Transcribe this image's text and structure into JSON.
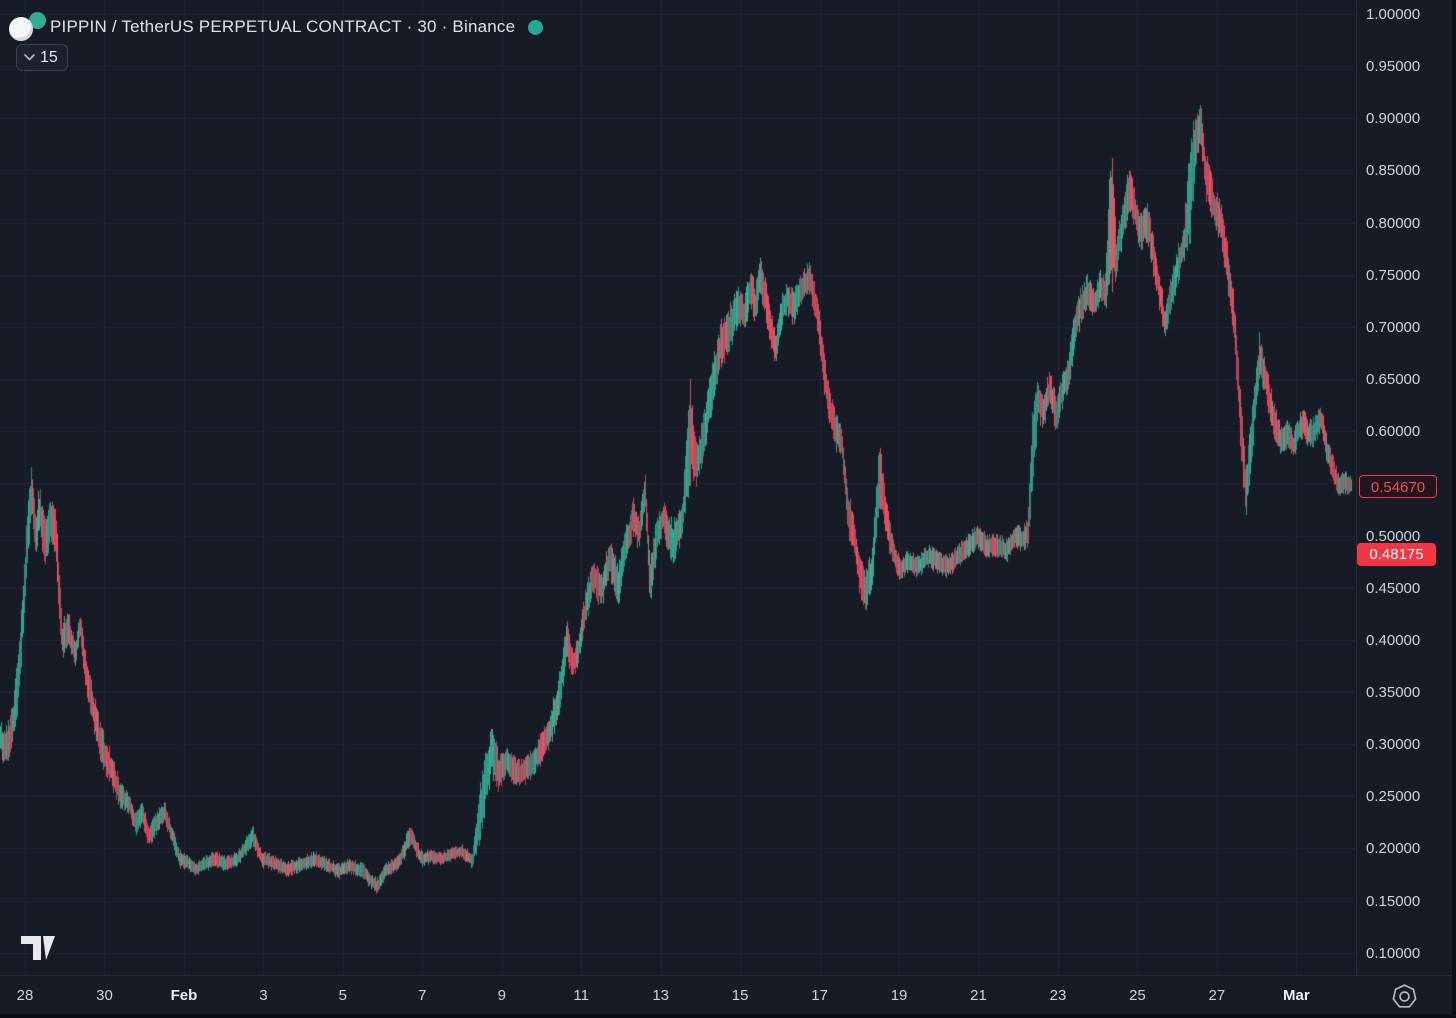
{
  "app": {
    "background": "#161b26",
    "grid_color": "#1f2533",
    "axis_text_color": "#ced2da"
  },
  "header": {
    "symbol_title": "PIPPIN / TetherUS PERPETUAL CONTRACT · 30 · Binance",
    "status_dot_color": "#22ab94",
    "coin_logo_back_color": "#2fae94",
    "interval_chip": {
      "label": "15",
      "icon": "chevron-down"
    }
  },
  "footer": {
    "logo": "tradingview-logo",
    "settings_icon": "gear-heptagon"
  },
  "chart_data": {
    "type": "candlestick",
    "title": "PIPPIN / TetherUS PERPETUAL CONTRACT · 30 · Binance",
    "exchange": "Binance",
    "interval_minutes": 30,
    "up_color": "#39b29a",
    "down_color": "#ee5467",
    "last_price": "0.54670",
    "marked_price": "0.48175",
    "y_axis": {
      "tick_labels": [
        "1.00000",
        "0.95000",
        "0.90000",
        "0.85000",
        "0.80000",
        "0.75000",
        "0.70000",
        "0.65000",
        "0.60000",
        "0.50000",
        "0.45000",
        "0.40000",
        "0.35000",
        "0.30000",
        "0.25000",
        "0.20000",
        "0.15000",
        "0.10000"
      ],
      "gridline_prices": [
        1.0,
        0.95,
        0.9,
        0.85,
        0.8,
        0.75,
        0.7,
        0.65,
        0.6,
        0.55,
        0.5,
        0.45,
        0.4,
        0.35,
        0.3,
        0.25,
        0.2,
        0.15,
        0.1
      ],
      "visible_range": [
        0.06,
        1.01
      ]
    },
    "x_axis": {
      "unit": "days_since_jan_28",
      "ticks": [
        {
          "label": "28",
          "d": 0
        },
        {
          "label": "30",
          "d": 2
        },
        {
          "label": "Feb",
          "d": 4,
          "bold": true
        },
        {
          "label": "3",
          "d": 6
        },
        {
          "label": "5",
          "d": 8
        },
        {
          "label": "7",
          "d": 10
        },
        {
          "label": "9",
          "d": 12
        },
        {
          "label": "11",
          "d": 14
        },
        {
          "label": "13",
          "d": 16
        },
        {
          "label": "15",
          "d": 18
        },
        {
          "label": "17",
          "d": 20
        },
        {
          "label": "19",
          "d": 22
        },
        {
          "label": "21",
          "d": 24
        },
        {
          "label": "23",
          "d": 26
        },
        {
          "label": "25",
          "d": 28
        },
        {
          "label": "27",
          "d": 30
        },
        {
          "label": "Mar",
          "d": 32,
          "bold": true
        }
      ]
    },
    "series_columns": [
      "day_offset",
      "price",
      "half_range"
    ],
    "series": [
      [
        -0.65,
        0.305,
        0.018
      ],
      [
        -0.48,
        0.298,
        0.02
      ],
      [
        -0.33,
        0.315,
        0.022
      ],
      [
        -0.18,
        0.36,
        0.03
      ],
      [
        -0.04,
        0.44,
        0.035
      ],
      [
        0.08,
        0.51,
        0.03
      ],
      [
        0.16,
        0.545,
        0.025
      ],
      [
        0.26,
        0.5,
        0.03
      ],
      [
        0.36,
        0.525,
        0.025
      ],
      [
        0.5,
        0.49,
        0.03
      ],
      [
        0.64,
        0.515,
        0.022
      ],
      [
        0.78,
        0.495,
        0.03
      ],
      [
        0.92,
        0.4,
        0.022
      ],
      [
        1.1,
        0.41,
        0.016
      ],
      [
        1.25,
        0.386,
        0.015
      ],
      [
        1.38,
        0.413,
        0.015
      ],
      [
        1.52,
        0.372,
        0.02
      ],
      [
        1.7,
        0.335,
        0.02
      ],
      [
        1.9,
        0.3,
        0.02
      ],
      [
        2.16,
        0.276,
        0.018
      ],
      [
        2.4,
        0.25,
        0.014
      ],
      [
        2.6,
        0.244,
        0.012
      ],
      [
        2.78,
        0.222,
        0.012
      ],
      [
        2.95,
        0.235,
        0.012
      ],
      [
        3.1,
        0.21,
        0.011
      ],
      [
        3.3,
        0.225,
        0.012
      ],
      [
        3.5,
        0.235,
        0.012
      ],
      [
        3.7,
        0.212,
        0.01
      ],
      [
        3.88,
        0.19,
        0.01
      ],
      [
        4.1,
        0.186,
        0.008
      ],
      [
        4.3,
        0.18,
        0.008
      ],
      [
        4.55,
        0.186,
        0.008
      ],
      [
        4.8,
        0.19,
        0.009
      ],
      [
        5.05,
        0.185,
        0.008
      ],
      [
        5.35,
        0.19,
        0.008
      ],
      [
        5.72,
        0.213,
        0.012
      ],
      [
        5.95,
        0.19,
        0.009
      ],
      [
        6.25,
        0.186,
        0.008
      ],
      [
        6.6,
        0.18,
        0.008
      ],
      [
        7.0,
        0.186,
        0.008
      ],
      [
        7.3,
        0.19,
        0.008
      ],
      [
        7.6,
        0.184,
        0.008
      ],
      [
        7.9,
        0.178,
        0.008
      ],
      [
        8.15,
        0.183,
        0.008
      ],
      [
        8.5,
        0.178,
        0.009
      ],
      [
        8.85,
        0.163,
        0.009
      ],
      [
        9.1,
        0.18,
        0.008
      ],
      [
        9.4,
        0.186,
        0.008
      ],
      [
        9.7,
        0.214,
        0.013
      ],
      [
        9.95,
        0.19,
        0.009
      ],
      [
        10.2,
        0.192,
        0.007
      ],
      [
        10.45,
        0.19,
        0.007
      ],
      [
        10.75,
        0.195,
        0.007
      ],
      [
        11.0,
        0.197,
        0.007
      ],
      [
        11.25,
        0.189,
        0.009
      ],
      [
        11.5,
        0.245,
        0.035
      ],
      [
        11.73,
        0.295,
        0.028
      ],
      [
        11.92,
        0.272,
        0.02
      ],
      [
        12.12,
        0.285,
        0.016
      ],
      [
        12.37,
        0.271,
        0.015
      ],
      [
        12.62,
        0.276,
        0.015
      ],
      [
        12.9,
        0.29,
        0.016
      ],
      [
        13.2,
        0.312,
        0.02
      ],
      [
        13.45,
        0.35,
        0.022
      ],
      [
        13.62,
        0.4,
        0.022
      ],
      [
        13.77,
        0.376,
        0.016
      ],
      [
        13.92,
        0.39,
        0.016
      ],
      [
        14.1,
        0.43,
        0.02
      ],
      [
        14.3,
        0.463,
        0.02
      ],
      [
        14.5,
        0.447,
        0.02
      ],
      [
        14.7,
        0.478,
        0.02
      ],
      [
        14.92,
        0.452,
        0.025
      ],
      [
        15.12,
        0.49,
        0.02
      ],
      [
        15.3,
        0.518,
        0.02
      ],
      [
        15.45,
        0.502,
        0.02
      ],
      [
        15.6,
        0.545,
        0.018
      ],
      [
        15.72,
        0.455,
        0.028
      ],
      [
        15.9,
        0.5,
        0.02
      ],
      [
        16.05,
        0.518,
        0.016
      ],
      [
        16.3,
        0.49,
        0.028
      ],
      [
        16.55,
        0.52,
        0.02
      ],
      [
        16.73,
        0.6,
        0.055
      ],
      [
        16.9,
        0.567,
        0.022
      ],
      [
        17.1,
        0.6,
        0.025
      ],
      [
        17.3,
        0.645,
        0.025
      ],
      [
        17.5,
        0.683,
        0.025
      ],
      [
        17.75,
        0.7,
        0.025
      ],
      [
        17.95,
        0.722,
        0.02
      ],
      [
        18.1,
        0.71,
        0.02
      ],
      [
        18.25,
        0.738,
        0.02
      ],
      [
        18.38,
        0.72,
        0.022
      ],
      [
        18.5,
        0.752,
        0.024
      ],
      [
        18.62,
        0.73,
        0.02
      ],
      [
        18.76,
        0.7,
        0.02
      ],
      [
        18.88,
        0.678,
        0.016
      ],
      [
        19.02,
        0.712,
        0.02
      ],
      [
        19.17,
        0.728,
        0.016
      ],
      [
        19.32,
        0.718,
        0.02
      ],
      [
        19.5,
        0.735,
        0.016
      ],
      [
        19.75,
        0.748,
        0.017
      ],
      [
        19.95,
        0.71,
        0.022
      ],
      [
        20.12,
        0.65,
        0.022
      ],
      [
        20.27,
        0.62,
        0.02
      ],
      [
        20.4,
        0.6,
        0.02
      ],
      [
        20.55,
        0.59,
        0.016
      ],
      [
        20.7,
        0.525,
        0.026
      ],
      [
        20.86,
        0.5,
        0.02
      ],
      [
        21.0,
        0.462,
        0.02
      ],
      [
        21.16,
        0.447,
        0.022
      ],
      [
        21.32,
        0.47,
        0.02
      ],
      [
        21.5,
        0.562,
        0.038
      ],
      [
        21.62,
        0.53,
        0.022
      ],
      [
        21.74,
        0.502,
        0.02
      ],
      [
        21.88,
        0.48,
        0.015
      ],
      [
        22.02,
        0.467,
        0.012
      ],
      [
        22.22,
        0.476,
        0.012
      ],
      [
        22.48,
        0.47,
        0.012
      ],
      [
        22.72,
        0.48,
        0.012
      ],
      [
        22.98,
        0.475,
        0.012
      ],
      [
        23.22,
        0.47,
        0.012
      ],
      [
        23.48,
        0.48,
        0.012
      ],
      [
        23.72,
        0.49,
        0.012
      ],
      [
        23.98,
        0.5,
        0.013
      ],
      [
        24.2,
        0.49,
        0.012
      ],
      [
        24.48,
        0.49,
        0.012
      ],
      [
        24.72,
        0.486,
        0.012
      ],
      [
        24.92,
        0.5,
        0.012
      ],
      [
        25.1,
        0.496,
        0.013
      ],
      [
        25.24,
        0.505,
        0.018
      ],
      [
        25.38,
        0.6,
        0.05
      ],
      [
        25.5,
        0.63,
        0.022
      ],
      [
        25.62,
        0.62,
        0.02
      ],
      [
        25.78,
        0.64,
        0.02
      ],
      [
        25.94,
        0.617,
        0.02
      ],
      [
        26.1,
        0.64,
        0.02
      ],
      [
        26.27,
        0.66,
        0.02
      ],
      [
        26.42,
        0.7,
        0.022
      ],
      [
        26.57,
        0.72,
        0.02
      ],
      [
        26.74,
        0.735,
        0.017
      ],
      [
        26.9,
        0.72,
        0.016
      ],
      [
        27.06,
        0.74,
        0.016
      ],
      [
        27.18,
        0.735,
        0.016
      ],
      [
        27.32,
        0.8,
        0.095
      ],
      [
        27.46,
        0.768,
        0.022
      ],
      [
        27.62,
        0.8,
        0.022
      ],
      [
        27.8,
        0.835,
        0.024
      ],
      [
        27.96,
        0.805,
        0.02
      ],
      [
        28.08,
        0.79,
        0.02
      ],
      [
        28.25,
        0.8,
        0.02
      ],
      [
        28.42,
        0.762,
        0.022
      ],
      [
        28.56,
        0.732,
        0.022
      ],
      [
        28.68,
        0.702,
        0.017
      ],
      [
        28.82,
        0.73,
        0.02
      ],
      [
        29.0,
        0.758,
        0.02
      ],
      [
        29.16,
        0.78,
        0.02
      ],
      [
        29.32,
        0.83,
        0.065
      ],
      [
        29.46,
        0.875,
        0.026
      ],
      [
        29.58,
        0.895,
        0.022
      ],
      [
        29.72,
        0.845,
        0.026
      ],
      [
        29.92,
        0.815,
        0.022
      ],
      [
        30.1,
        0.8,
        0.02
      ],
      [
        30.28,
        0.752,
        0.026
      ],
      [
        30.44,
        0.7,
        0.026
      ],
      [
        30.6,
        0.6,
        0.032
      ],
      [
        30.72,
        0.542,
        0.028
      ],
      [
        30.88,
        0.6,
        0.026
      ],
      [
        31.06,
        0.672,
        0.024
      ],
      [
        31.22,
        0.65,
        0.02
      ],
      [
        31.38,
        0.618,
        0.02
      ],
      [
        31.6,
        0.59,
        0.016
      ],
      [
        31.76,
        0.6,
        0.016
      ],
      [
        31.92,
        0.586,
        0.015
      ],
      [
        32.04,
        0.6,
        0.016
      ],
      [
        32.18,
        0.61,
        0.015
      ],
      [
        32.3,
        0.596,
        0.015
      ],
      [
        32.46,
        0.6,
        0.015
      ],
      [
        32.6,
        0.615,
        0.015
      ],
      [
        32.76,
        0.582,
        0.016
      ],
      [
        32.9,
        0.566,
        0.015
      ],
      [
        33.04,
        0.548,
        0.014
      ],
      [
        33.18,
        0.552,
        0.012
      ],
      [
        33.4,
        0.5467,
        0.01
      ]
    ]
  }
}
